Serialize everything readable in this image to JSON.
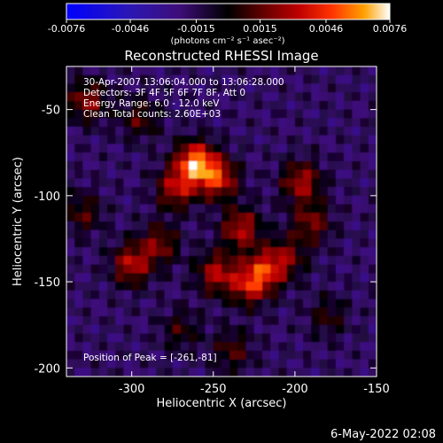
{
  "colorbar": {
    "tick_labels": [
      "-0.0076",
      "-0.0046",
      "-0.0015",
      "0.0015",
      "0.0046",
      "0.0076"
    ],
    "tick_values": [
      -0.0076,
      -0.0046,
      -0.0015,
      0.0015,
      0.0046,
      0.0076
    ],
    "unit_label": "(photons cm⁻² s⁻¹ asec⁻²)",
    "range": [
      -0.0076,
      0.0076
    ]
  },
  "chart_data": {
    "type": "heatmap",
    "title": "Reconstructed RHESSI Image",
    "xlabel": "Heliocentric X (arcsec)",
    "ylabel": "Heliocentric Y (arcsec)",
    "xlim": [
      -340,
      -150
    ],
    "ylim": [
      -205,
      -25
    ],
    "x_ticks": [
      -300,
      -250,
      -200,
      -150
    ],
    "y_ticks": [
      -50,
      -100,
      -150,
      -200
    ],
    "x_tick_labels": [
      "-300",
      "-250",
      "-200",
      "-150"
    ],
    "y_tick_labels": [
      "-50",
      "-100",
      "-150",
      "-200"
    ],
    "annotations": [
      "30-Apr-2007 13:06:04.000 to 13:06:28.000",
      "Detectors: 3F 4F 5F 6F 7F 8F, Att 0",
      "Energy Range: 6.0 - 12.0 keV",
      "Clean     Total counts: 2.60E+03",
      "Position of Peak = [-261,-81]"
    ],
    "peak": {
      "x": -261,
      "y": -81
    },
    "intensity_range": [
      -0.0076,
      0.0076
    ],
    "features": [
      {
        "x": -261,
        "y": -81,
        "value": 0.0076
      },
      {
        "x": -247,
        "y": -90,
        "value": 0.0055
      },
      {
        "x": -273,
        "y": -96,
        "value": 0.0046
      },
      {
        "x": -233,
        "y": -119,
        "value": 0.0048
      },
      {
        "x": -218,
        "y": -143,
        "value": 0.0046
      },
      {
        "x": -300,
        "y": -140,
        "value": 0.0048
      },
      {
        "x": -283,
        "y": -128,
        "value": 0.0036
      },
      {
        "x": -248,
        "y": -145,
        "value": 0.0046
      },
      {
        "x": -228,
        "y": -152,
        "value": 0.0048
      },
      {
        "x": -196,
        "y": -92,
        "value": 0.0046
      },
      {
        "x": -190,
        "y": -116,
        "value": 0.0036
      },
      {
        "x": -205,
        "y": -136,
        "value": 0.0032
      },
      {
        "x": -327,
        "y": -45,
        "value": 0.0041
      },
      {
        "x": -330,
        "y": -110,
        "value": 0.0028
      },
      {
        "x": -295,
        "y": -55,
        "value": 0.0028
      },
      {
        "x": -238,
        "y": -190,
        "value": 0.0028
      },
      {
        "x": -270,
        "y": -178,
        "value": 0.0023
      },
      {
        "x": -180,
        "y": -170,
        "value": 0.0023
      }
    ]
  },
  "footer": {
    "date": "6-May-2022 02:08"
  }
}
